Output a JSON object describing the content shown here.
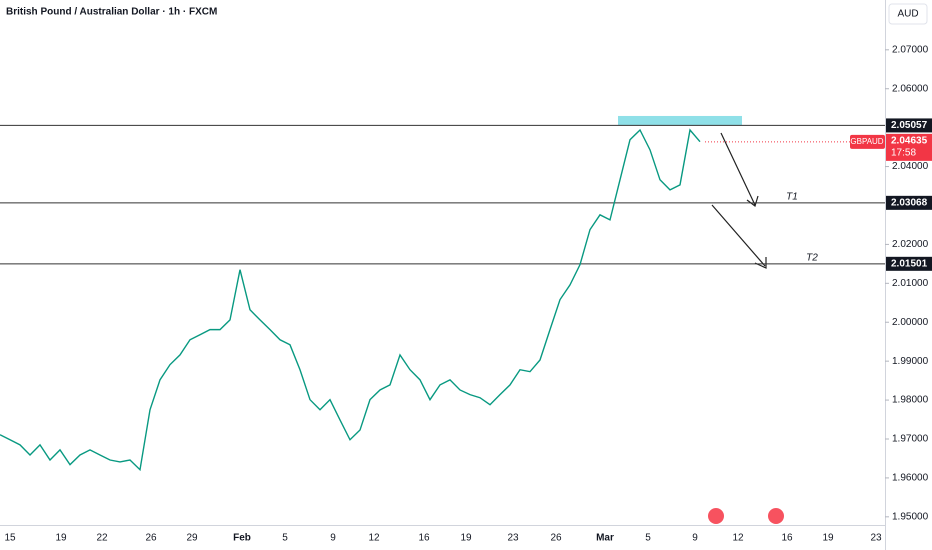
{
  "chart_data": {
    "type": "line",
    "title": "British Pound / Australian Dollar · 1h · FXCM",
    "currency": "AUD",
    "symbol": "GBPAUD",
    "last_price": 2.04635,
    "last_price_label": "2.04635",
    "countdown": "17:58",
    "series": [
      {
        "name": "GBPAUD",
        "color": "#089981",
        "values": [
          1.9711,
          1.9698,
          1.9685,
          1.9659,
          1.9685,
          1.9646,
          1.9672,
          1.9634,
          1.9659,
          1.9672,
          1.9659,
          1.9646,
          1.9641,
          1.9646,
          1.9621,
          1.9775,
          1.9852,
          1.9891,
          1.9916,
          1.9955,
          1.9968,
          1.9981,
          1.9981,
          2.0006,
          2.0135,
          2.0032,
          2.0006,
          1.9981,
          1.9955,
          1.9942,
          1.9878,
          1.9801,
          1.9775,
          1.9801,
          1.9749,
          1.9698,
          1.9723,
          1.9801,
          1.9826,
          1.9839,
          1.9916,
          1.9878,
          1.9852,
          1.9801,
          1.9839,
          1.9852,
          1.9826,
          1.9814,
          1.9806,
          1.9788,
          1.9814,
          1.9839,
          1.9878,
          1.9873,
          1.9903,
          1.9981,
          2.0058,
          2.0096,
          2.0148,
          2.0238,
          2.0276,
          2.0263,
          2.0366,
          2.0469,
          2.0494,
          2.0443,
          2.0366,
          2.034,
          2.0353,
          2.0494,
          2.0464
        ]
      }
    ],
    "levels": [
      {
        "value": 2.05057,
        "label": "2.05057"
      },
      {
        "value": 2.03068,
        "label": "2.03068"
      },
      {
        "value": 2.01501,
        "label": "2.01501"
      }
    ],
    "zone": [
      2.0506,
      2.053
    ],
    "zone_color": "#8fe0e8",
    "targets": [
      "T1",
      "T2"
    ],
    "ylim": [
      1.9479,
      2.0828
    ],
    "yticks": [
      {
        "value": 1.95,
        "label": "1.95000"
      },
      {
        "value": 1.96,
        "label": "1.96000"
      },
      {
        "value": 1.97,
        "label": "1.97000"
      },
      {
        "value": 1.98,
        "label": "1.98000"
      },
      {
        "value": 1.99,
        "label": "1.99000"
      },
      {
        "value": 2.0,
        "label": "2.00000"
      },
      {
        "value": 2.01,
        "label": "2.01000"
      },
      {
        "value": 2.02,
        "label": "2.02000"
      },
      {
        "value": 2.04,
        "label": "2.04000"
      },
      {
        "value": 2.06,
        "label": "2.06000"
      },
      {
        "value": 2.07,
        "label": "2.07000"
      }
    ],
    "xlabels": [
      "15",
      "19",
      "22",
      "26",
      "29",
      "Feb",
      "5",
      "9",
      "12",
      "16",
      "19",
      "23",
      "26",
      "Mar",
      "5",
      "9",
      "12",
      "16",
      "19",
      "23"
    ]
  }
}
